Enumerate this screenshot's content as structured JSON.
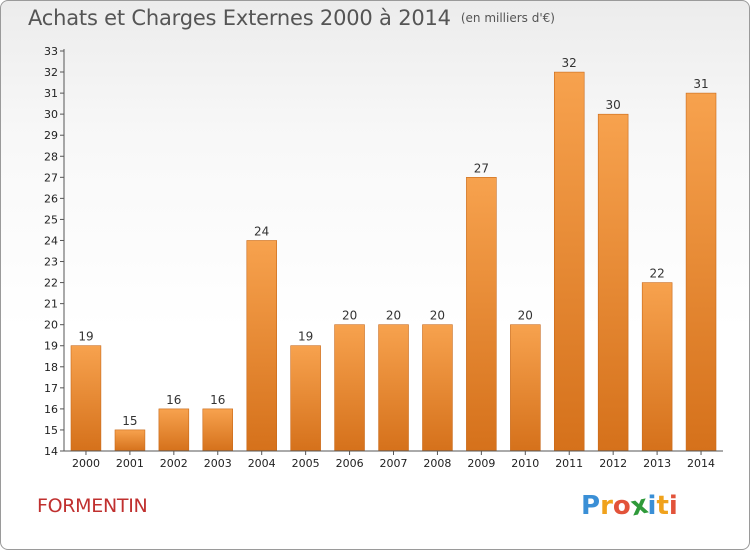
{
  "title": "Achats et Charges Externes 2000 à 2014",
  "unit": "(en milliers d'€)",
  "commune": "FORMENTIN",
  "logo": {
    "text": "Proxiti",
    "letters": [
      "P",
      "r",
      "o",
      "x",
      "i",
      "t",
      "i"
    ],
    "colors": [
      "#3a8fd6",
      "#f0a21c",
      "#e2533a",
      "#2f9a3a",
      "#3a8fd6",
      "#f0a21c",
      "#e2533a"
    ]
  },
  "colors": {
    "bar": "#f59a43",
    "bar_dark": "#d8741d",
    "title": "#555555",
    "commune": "#c0302f"
  },
  "chart_data": {
    "type": "bar",
    "categories": [
      "2000",
      "2001",
      "2002",
      "2003",
      "2004",
      "2005",
      "2006",
      "2007",
      "2008",
      "2009",
      "2010",
      "2011",
      "2012",
      "2013",
      "2014"
    ],
    "values": [
      19,
      15,
      16,
      16,
      24,
      19,
      20,
      20,
      20,
      27,
      20,
      32,
      30,
      22,
      31
    ],
    "data_labels": [
      "19",
      "15",
      "16",
      "16",
      "24",
      "19",
      "20",
      "20",
      "20",
      "27",
      "20",
      "32",
      "30",
      "22",
      "31"
    ],
    "ylim": [
      14,
      33
    ],
    "yticks": [
      14,
      15,
      16,
      17,
      18,
      19,
      20,
      21,
      22,
      23,
      24,
      25,
      26,
      27,
      28,
      29,
      30,
      31,
      32,
      33
    ],
    "grid": false,
    "xlabel": "",
    "ylabel": ""
  }
}
